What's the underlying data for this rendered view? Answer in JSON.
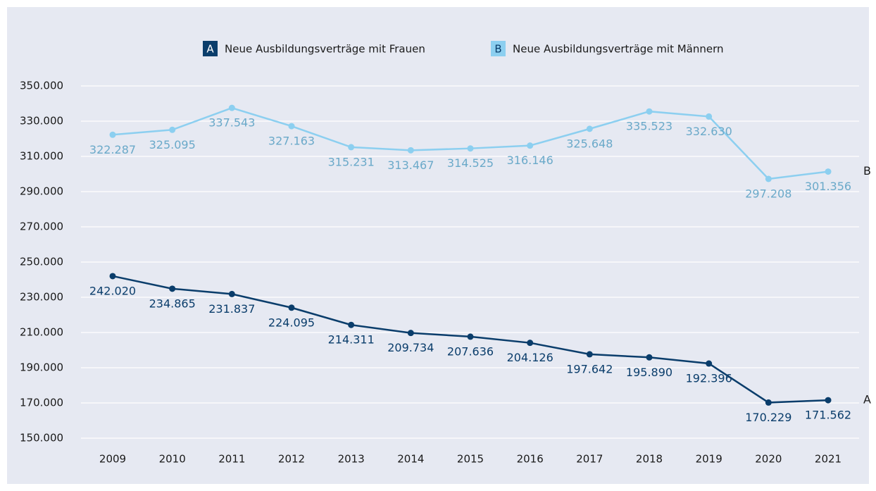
{
  "chart_data": {
    "type": "line",
    "categories": [
      "2009",
      "2010",
      "2011",
      "2012",
      "2013",
      "2014",
      "2015",
      "2016",
      "2017",
      "2018",
      "2019",
      "2020",
      "2021"
    ],
    "series": [
      {
        "name": "Neue Ausbildungsverträge mit Frauen",
        "marker_label": "A",
        "color": "#0a3d6b",
        "label_color": "#0a3d6b",
        "values": [
          242020,
          234865,
          231837,
          224095,
          214311,
          209734,
          207636,
          204126,
          197642,
          195890,
          192396,
          170229,
          171562
        ],
        "value_labels": [
          "242.020",
          "234.865",
          "231.837",
          "224.095",
          "214.311",
          "209.734",
          "207.636",
          "204.126",
          "197.642",
          "195.890",
          "192.396",
          "170.229",
          "171.562"
        ]
      },
      {
        "name": "Neue Ausbildungsverträge mit Männern",
        "marker_label": "B",
        "color": "#8ccff0",
        "label_color": "#6aa9c9",
        "values": [
          322287,
          325095,
          337543,
          327163,
          315231,
          313467,
          314525,
          316146,
          325648,
          335523,
          332630,
          297208,
          301356
        ],
        "value_labels": [
          "322.287",
          "325.095",
          "337.543",
          "327.163",
          "315.231",
          "313.467",
          "314.525",
          "316.146",
          "325.648",
          "335.523",
          "332.630",
          "297.208",
          "301.356"
        ]
      }
    ],
    "ylim": [
      150000,
      350000
    ],
    "yticks": [
      {
        "value": 150000,
        "label": "150.000"
      },
      {
        "value": 170000,
        "label": "170.000"
      },
      {
        "value": 190000,
        "label": "190.000"
      },
      {
        "value": 210000,
        "label": "210.000"
      },
      {
        "value": 230000,
        "label": "230.000"
      },
      {
        "value": 250000,
        "label": "250.000"
      },
      {
        "value": 270000,
        "label": "270.000"
      },
      {
        "value": 290000,
        "label": "290.000"
      },
      {
        "value": 310000,
        "label": "310.000"
      },
      {
        "value": 330000,
        "label": "330.000"
      },
      {
        "value": 350000,
        "label": "350.000"
      }
    ],
    "grid": true
  }
}
